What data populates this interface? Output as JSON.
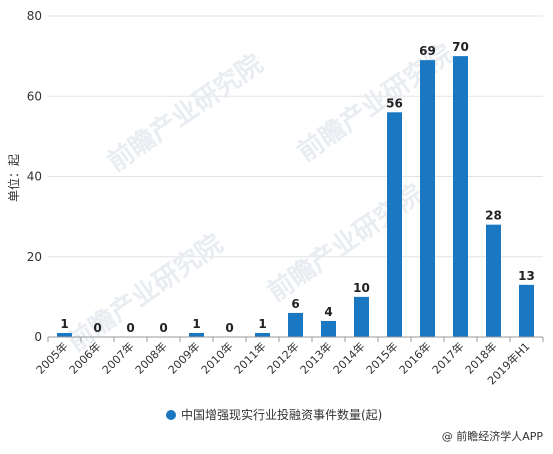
{
  "chart_data": {
    "type": "bar",
    "categories": [
      "2005年",
      "2006年",
      "2007年",
      "2008年",
      "2009年",
      "2010年",
      "2011年",
      "2012年",
      "2013年",
      "2014年",
      "2015年",
      "2016年",
      "2017年",
      "2018年",
      "2019年H1"
    ],
    "series": [
      {
        "name": "中国增强现实行业投融资事件数量(起)",
        "values": [
          1,
          0,
          0,
          0,
          1,
          0,
          1,
          6,
          4,
          10,
          56,
          69,
          70,
          28,
          13
        ]
      }
    ],
    "ylabel": "单位：起",
    "ylim": [
      0,
      80
    ],
    "yticks": [
      0,
      20,
      40,
      60,
      80
    ],
    "grid": true,
    "legend_position": "bottom-center",
    "bar_color": "#1a78c2"
  },
  "watermark": "前瞻产业研究院",
  "credit": "@ 前瞻经济学人APP"
}
